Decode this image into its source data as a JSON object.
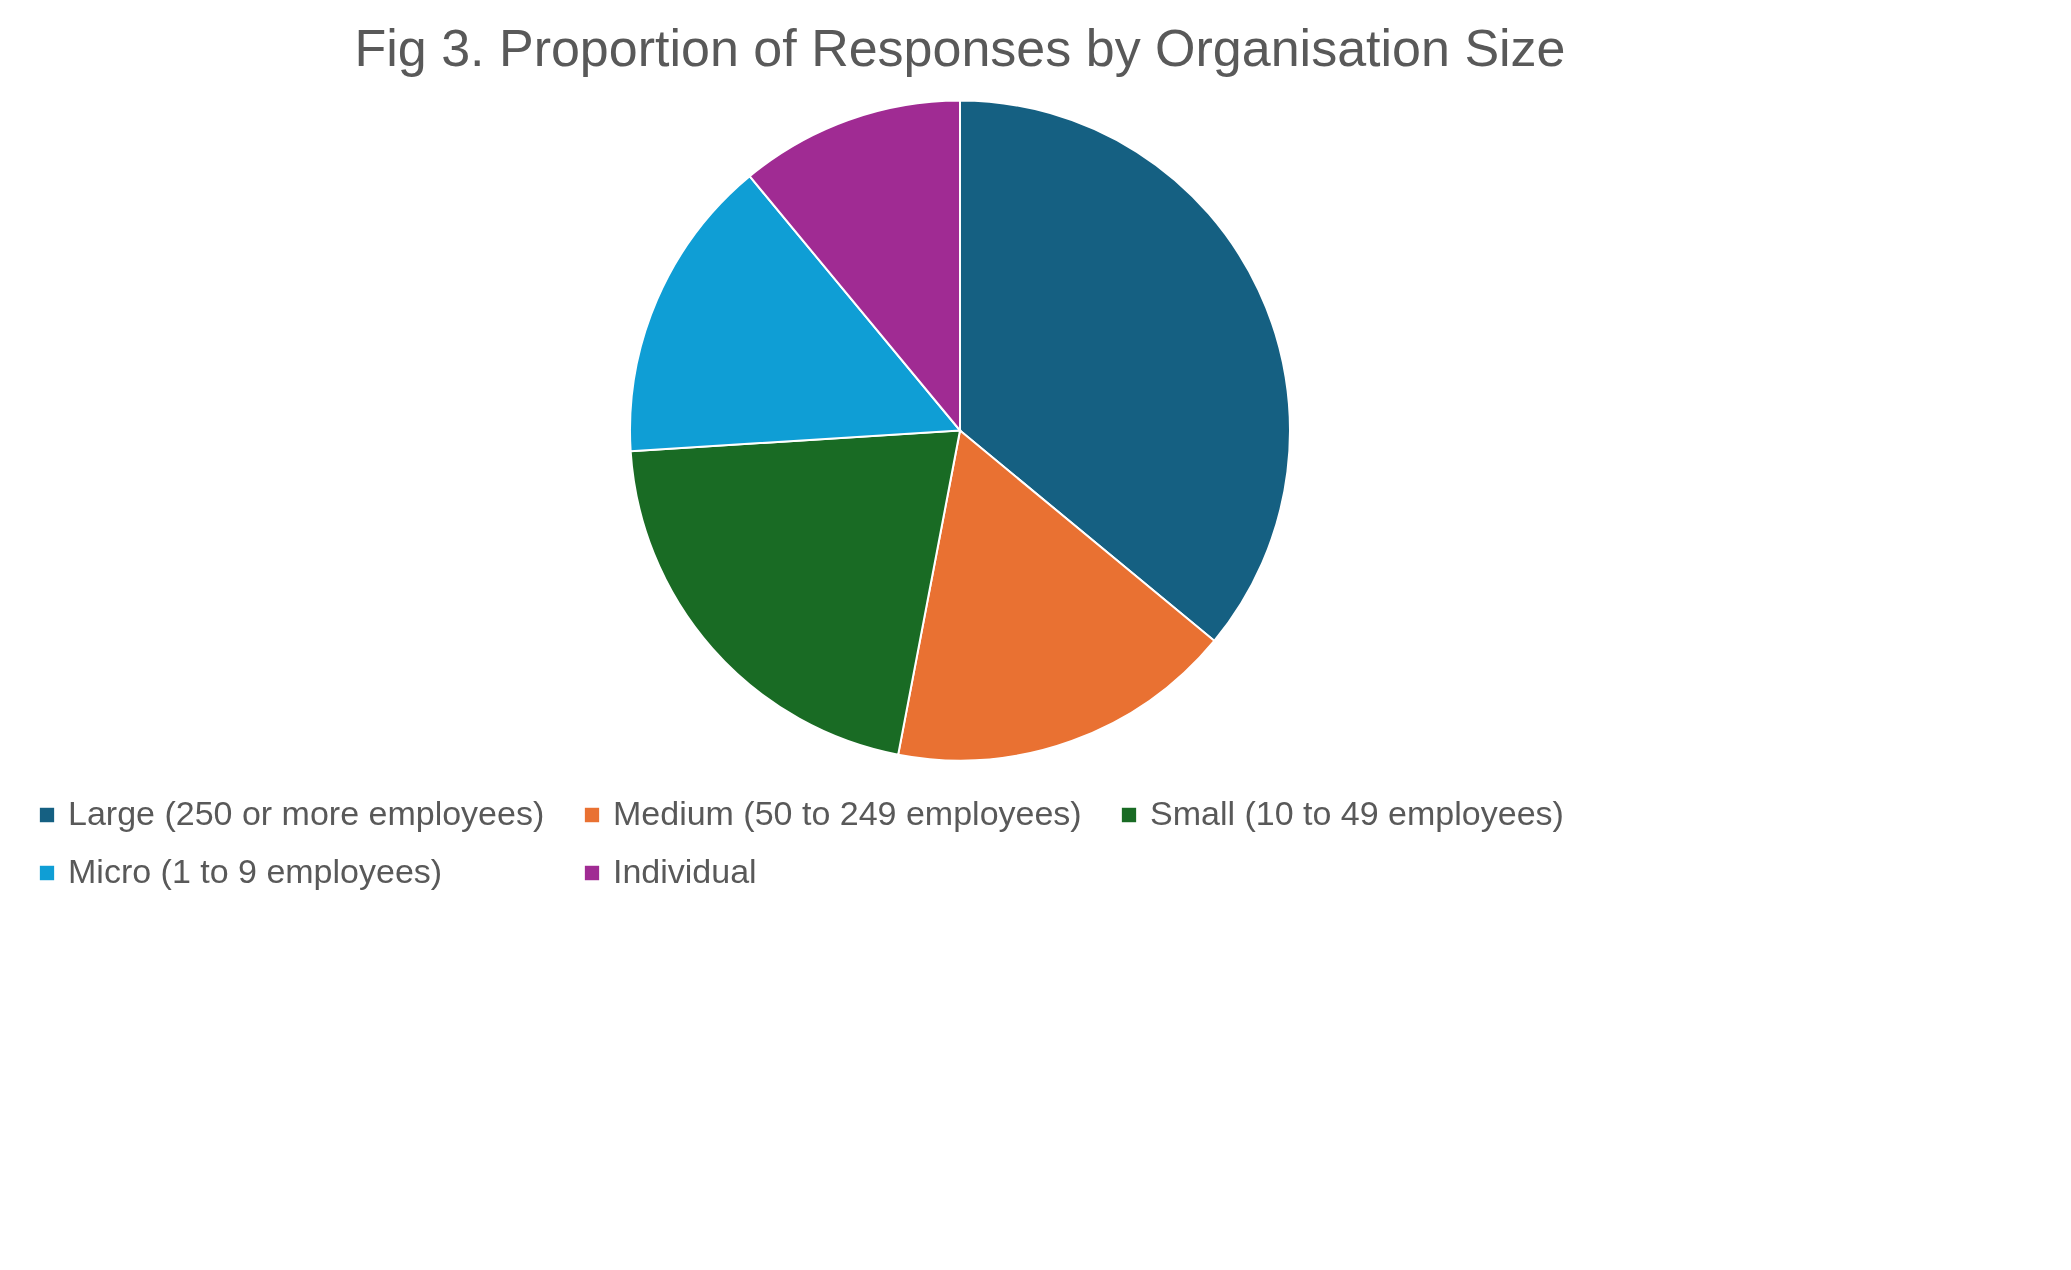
{
  "chart_data": {
    "type": "pie",
    "title": "Fig 3. Proportion of Responses by Organisation Size",
    "categories": [
      "Large (250 or more employees)",
      "Medium (50 to 249 employees)",
      "Small (10 to 49 employees)",
      "Micro (1 to 9 employees)",
      "Individual"
    ],
    "values": [
      36,
      17,
      21,
      15,
      11
    ],
    "colors": [
      "#156082",
      "#e97132",
      "#196b24",
      "#0f9ed5",
      "#a02b93"
    ],
    "legend": "bottom"
  }
}
